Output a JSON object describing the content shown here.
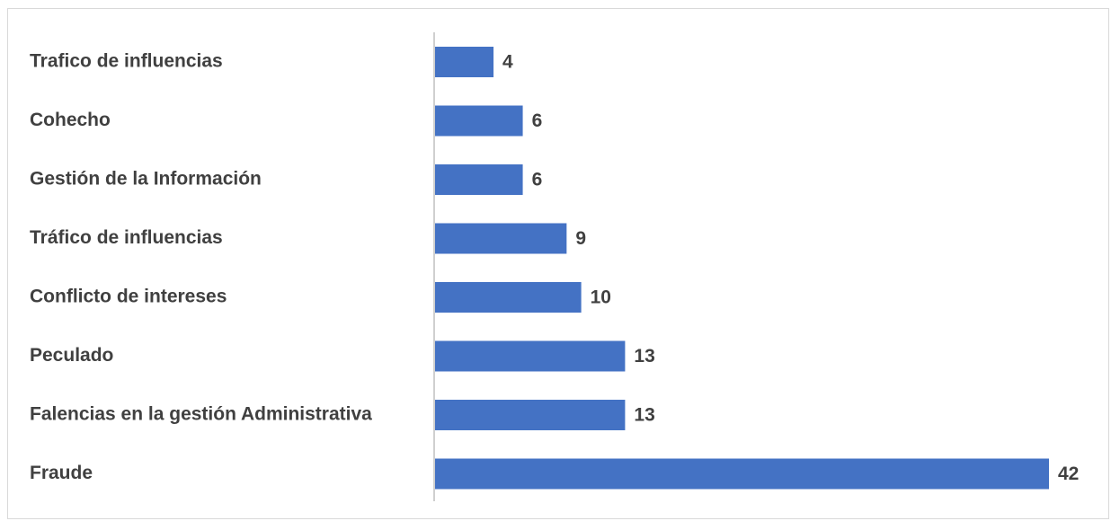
{
  "chart_data": {
    "type": "bar",
    "orientation": "horizontal",
    "categories": [
      "Trafico de influencias",
      "Cohecho",
      "Gestión de la Información",
      "Tráfico de influencias",
      "Conflicto de intereses",
      "Peculado",
      "Falencias en la gestión Administrativa",
      "Fraude"
    ],
    "values": [
      4,
      6,
      6,
      9,
      10,
      13,
      13,
      42
    ],
    "value_labels": [
      "4",
      "6",
      "6",
      "9",
      "10",
      "13",
      "13",
      "42"
    ],
    "title": "",
    "xlabel": "",
    "ylabel": "",
    "xlim": [
      0,
      42
    ],
    "grid": false,
    "legend": "none",
    "bar_color": "#4472c4",
    "label_color": "#404040",
    "axis_color": "#bfbfbf"
  }
}
